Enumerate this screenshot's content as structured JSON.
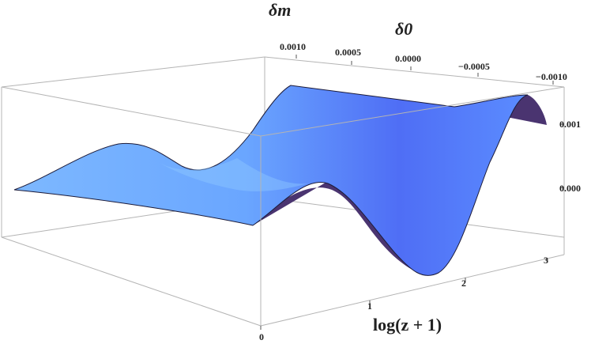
{
  "chart_data": {
    "type": "surface3d",
    "axes": {
      "x": {
        "label": "log(z + 1)",
        "range": [
          0,
          3.1
        ],
        "ticks": [
          "0",
          "1",
          "2",
          "3"
        ]
      },
      "y": {
        "label": "δ0",
        "range": [
          -0.001,
          0.001
        ],
        "ticks": [
          "0.0010",
          "0.0005",
          "0.0000",
          "−0.0005",
          "−0.0010"
        ]
      },
      "z": {
        "label": "δm",
        "ticks": [
          "0.000",
          "0.001"
        ]
      }
    },
    "surface": {
      "description_values": "z ≈ y · f(x), where f(x) oscillates: ~0.3 at x=0.5, ~−0.6 at x=1.0, ~1.4 at x=1.75, ~−1.2 at x=2.6",
      "samples_f": [
        [
          0.0,
          0.0
        ],
        [
          0.25,
          0.15
        ],
        [
          0.5,
          0.3
        ],
        [
          0.75,
          0.0
        ],
        [
          1.0,
          -0.6
        ],
        [
          1.25,
          -0.3
        ],
        [
          1.5,
          0.6
        ],
        [
          1.75,
          1.4
        ],
        [
          2.0,
          1.2
        ],
        [
          2.25,
          0.2
        ],
        [
          2.5,
          -0.9
        ],
        [
          2.75,
          -1.2
        ],
        [
          3.0,
          -0.9
        ]
      ]
    },
    "grid": false,
    "colors": {
      "surface_top": "#5b8cff",
      "surface_light": "#8ec8ff",
      "surface_under": "#4a3470",
      "box": "#b4b4b4"
    }
  }
}
